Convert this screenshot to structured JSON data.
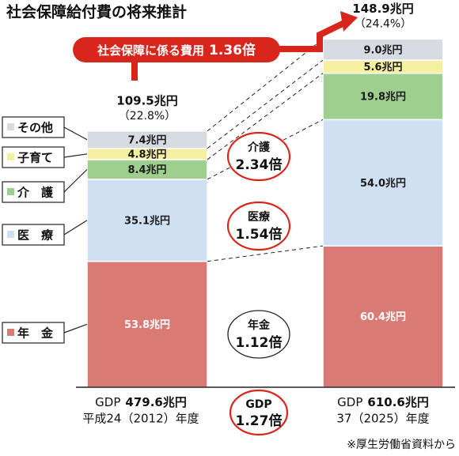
{
  "chart_data": {
    "type": "bar",
    "title": "社会保障給付費の将来推計",
    "categories": [
      {
        "gdp_prefix": "GDP",
        "gdp_value": "479.6兆円",
        "year": "平成24（2012）年度",
        "total": "109.5兆円",
        "ratio": "（22.8%）"
      },
      {
        "gdp_prefix": "GDP",
        "gdp_value": "610.6兆円",
        "year": "37（2025）年度",
        "total": "148.9兆円",
        "ratio": "（24.4%）"
      }
    ],
    "series": [
      {
        "name": "年　金",
        "values": [
          53.8,
          60.4
        ],
        "labels": [
          "53.8兆円",
          "60.4兆円"
        ]
      },
      {
        "name": "医　療",
        "values": [
          35.1,
          54.0
        ],
        "labels": [
          "35.1兆円",
          "54.0兆円"
        ]
      },
      {
        "name": "介　護",
        "values": [
          8.4,
          19.8
        ],
        "labels": [
          "8.4兆円",
          "19.8兆円"
        ]
      },
      {
        "name": "子育て",
        "values": [
          4.8,
          5.6
        ],
        "labels": [
          "4.8兆円",
          "5.6兆円"
        ]
      },
      {
        "name": "その他",
        "values": [
          7.4,
          9.0
        ],
        "labels": [
          "7.4兆円",
          "9.0兆円"
        ]
      }
    ],
    "ylim": [
      0,
      152
    ],
    "growth_ratios": [
      {
        "label": "年金",
        "value": "1.12倍"
      },
      {
        "label": "医療",
        "value": "1.54倍"
      },
      {
        "label": "介護",
        "value": "2.34倍"
      },
      {
        "label": "GDP",
        "value": "1.27倍"
      }
    ],
    "arrow_label": "社会保障に係る費用",
    "arrow_value": "1.36倍",
    "source": "※厚生労働省資料から"
  },
  "colors": {
    "pension": "#d97a74",
    "medical": "#cfe0f2",
    "care": "#9fcf8f",
    "childcare": "#f4f0a0",
    "other": "#d6dbe1",
    "accent": "#d9261c",
    "line": "#222222"
  }
}
